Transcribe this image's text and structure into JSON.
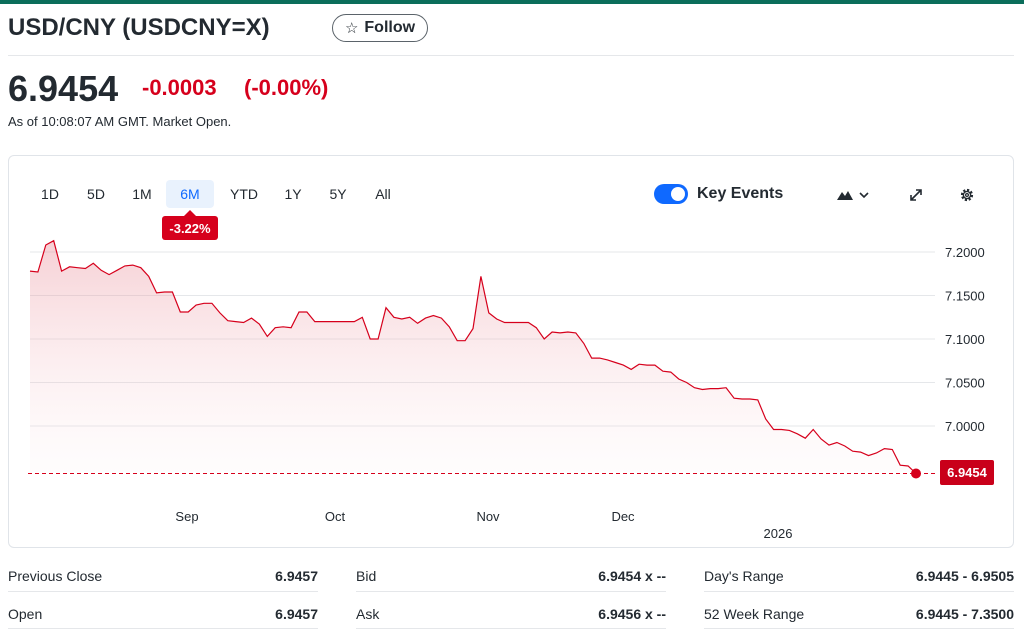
{
  "header": {
    "title": "USD/CNY (USDCNY=X)",
    "follow_label": "Follow"
  },
  "quote": {
    "price": "6.9454",
    "change": "-0.0003",
    "change_pct": "(-0.00%)",
    "as_of": "As of 10:08:07 AM GMT. Market Open."
  },
  "chart_controls": {
    "ranges": [
      "1D",
      "5D",
      "1M",
      "6M",
      "YTD",
      "1Y",
      "5Y",
      "All"
    ],
    "selected_range": "6M",
    "range_change": "-3.22%",
    "key_events_label": "Key Events",
    "key_events_on": true,
    "icons": [
      "mountain-chart-icon",
      "chevron-down-icon",
      "expand-icon",
      "gear-icon"
    ]
  },
  "chart_data": {
    "type": "area",
    "yticks": [
      "7.2000",
      "7.1500",
      "7.1000",
      "7.0500",
      "7.0000"
    ],
    "xticks": [
      "Sep",
      "Oct",
      "Nov",
      "Dec",
      "2026"
    ],
    "ylim": [
      6.93,
      7.22
    ],
    "current_value": "6.9454",
    "series": [
      {
        "values": [
          7.178,
          7.177,
          7.208,
          7.213,
          7.178,
          7.183,
          7.182,
          7.181,
          7.187,
          7.179,
          7.174,
          7.179,
          7.184,
          7.185,
          7.182,
          7.172,
          7.153,
          7.154,
          7.154,
          7.131,
          7.131,
          7.139,
          7.141,
          7.141,
          7.13,
          7.121,
          7.12,
          7.119,
          7.124,
          7.117,
          7.103,
          7.113,
          7.114,
          7.113,
          7.131,
          7.131,
          7.12,
          7.12,
          7.12,
          7.12,
          7.12,
          7.12,
          7.125,
          7.1,
          7.1,
          7.136,
          7.125,
          7.123,
          7.125,
          7.118,
          7.124,
          7.127,
          7.124,
          7.114,
          7.098,
          7.098,
          7.112,
          7.172,
          7.13,
          7.123,
          7.119,
          7.119,
          7.119,
          7.119,
          7.113,
          7.1,
          7.108,
          7.107,
          7.108,
          7.107,
          7.095,
          7.078,
          7.078,
          7.076,
          7.073,
          7.07,
          7.065,
          7.071,
          7.07,
          7.07,
          7.063,
          7.062,
          7.054,
          7.05,
          7.044,
          7.042,
          7.043,
          7.043,
          7.044,
          7.032,
          7.031,
          7.031,
          7.03,
          7.008,
          6.996,
          6.996,
          6.995,
          6.991,
          6.986,
          6.996,
          6.985,
          6.978,
          6.981,
          6.977,
          6.971,
          6.97,
          6.966,
          6.969,
          6.974,
          6.973,
          6.955,
          6.954,
          6.9454
        ]
      }
    ]
  },
  "stats": {
    "col1": [
      {
        "label": "Previous Close",
        "value": "6.9457"
      },
      {
        "label": "Open",
        "value": "6.9457"
      }
    ],
    "col2": [
      {
        "label": "Bid",
        "value": "6.9454 x --"
      },
      {
        "label": "Ask",
        "value": "6.9456 x --"
      }
    ],
    "col3": [
      {
        "label": "Day's Range",
        "value": "6.9445 - 6.9505"
      },
      {
        "label": "52 Week Range",
        "value": "6.9445 - 7.3500"
      }
    ]
  }
}
